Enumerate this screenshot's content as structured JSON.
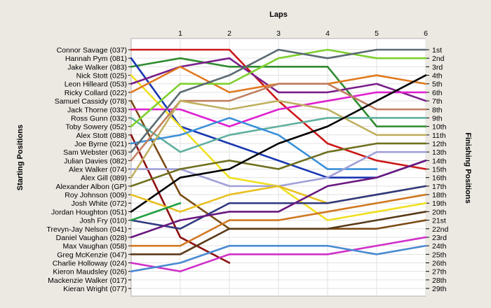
{
  "chart_data": {
    "type": "line",
    "title": "",
    "xlabel": "Laps",
    "ylabel_left": "Starting Positions",
    "ylabel_right": "Finishing Positions",
    "x_ticks": [
      1,
      2,
      3,
      4,
      5,
      6
    ],
    "x_range": [
      0,
      6
    ],
    "y_range": [
      1,
      29
    ],
    "y_reversed": true,
    "grid": true,
    "starting_labels": [
      "Connor Savage (037)",
      "Hannah Pym (081)",
      "Jake Walker (083)",
      "Nick Stott (025)",
      "Leon Hilleard (053)",
      "Ricky Collard (022)",
      "Samuel Cassidy (078)",
      "Jack Thorne (033)",
      "Ross Gunn (032)",
      "Toby Sowery (052)",
      "Alex Stott (088)",
      "Joe Byrne (021)",
      "Sam Webster (063)",
      "Julian Davies (082)",
      "Alex Walker (074)",
      "Alex Gill (089)",
      "Alexander Albon (GP)",
      "Roy Johnson (009)",
      "Josh White (072)",
      "Jordan Houghton (051)",
      "Josh Fry (010)",
      "Trevyn-Jay Nelson (041)",
      "Daniel Vaughan (028)",
      "Max Vaughan (058)",
      "Greg McKenzie (047)",
      "Charlie Holloway (024)",
      "Kieron Maudsley (026)",
      "Mackenzie Walker (017)",
      "Kieran Wright (077)"
    ],
    "finishing_labels": [
      "1st",
      "2nd",
      "3rd",
      "4th",
      "5th",
      "6th",
      "7th",
      "8th",
      "9th",
      "10th",
      "11th",
      "12th",
      "13th",
      "14th",
      "15th",
      "16th",
      "17th",
      "18th",
      "19th",
      "20th",
      "21st",
      "22nd",
      "23rd",
      "24th",
      "25th",
      "26th",
      "27th",
      "28th",
      "29th"
    ],
    "series": [
      {
        "color": "#cc1818",
        "values": [
          1,
          1,
          1,
          7,
          12,
          14,
          15
        ]
      },
      {
        "color": "#2e8b2e",
        "values": [
          3,
          2,
          3,
          3,
          3,
          10,
          10
        ]
      },
      {
        "color": "#1838b0",
        "values": [
          2,
          10,
          12,
          14,
          16,
          16,
          14
        ]
      },
      {
        "color": "#f0e020",
        "values": [
          4,
          10,
          16,
          17,
          21,
          20,
          19
        ]
      },
      {
        "color": "#7a1f8a",
        "values": [
          5,
          3,
          2,
          6,
          6,
          5,
          7
        ]
      },
      {
        "color": "#e07a20",
        "values": [
          6,
          3,
          6,
          5,
          5,
          4,
          5
        ]
      },
      {
        "color": "#7a4a12",
        "values": [
          7,
          18,
          22,
          22,
          22,
          22,
          21
        ]
      },
      {
        "color": "#e020d0",
        "values": [
          8,
          8,
          10,
          8,
          7,
          6,
          6
        ]
      },
      {
        "color": "#60b0a0",
        "values": [
          9,
          13,
          11,
          10,
          9,
          9,
          9
        ]
      },
      {
        "color": "#7ed030",
        "values": [
          10,
          5,
          5,
          2,
          1,
          2,
          2
        ]
      },
      {
        "color": "#8b1010",
        "values": [
          11,
          23,
          26
        ]
      },
      {
        "color": "#3a90d8",
        "values": [
          12,
          11,
          9,
          11,
          15,
          15
        ]
      },
      {
        "color": "#5a6a72",
        "values": [
          13,
          6,
          4,
          1,
          2,
          1,
          1
        ]
      },
      {
        "color": "#c08060",
        "values": [
          14,
          7,
          7,
          5,
          5,
          8,
          8
        ]
      },
      {
        "color": "#a0a0d8",
        "values": [
          15,
          15,
          17,
          17,
          16,
          13,
          13
        ]
      },
      {
        "color": "#c0b060",
        "values": [
          16,
          7,
          8,
          7,
          8,
          11,
          11
        ]
      },
      {
        "color": "#707020",
        "values": [
          17,
          15,
          14,
          15,
          13,
          12,
          12
        ]
      },
      {
        "color": "#000000",
        "values": [
          20,
          16,
          15,
          12,
          10,
          7,
          4
        ]
      },
      {
        "color": "#e8c020",
        "values": [
          18,
          20,
          18,
          17,
          19,
          18,
          17
        ]
      },
      {
        "color": "#303880",
        "values": [
          21,
          22,
          19,
          19,
          19,
          18,
          17
        ]
      },
      {
        "color": "#20a040",
        "values": [
          21,
          19
        ]
      },
      {
        "color": "#6a1880",
        "values": [
          23,
          21,
          20,
          20,
          17,
          16,
          14
        ]
      },
      {
        "color": "#d07820",
        "values": [
          24,
          24,
          21,
          21,
          20,
          19,
          18
        ]
      },
      {
        "color": "#5a3a18",
        "values": [
          25,
          25,
          22,
          22,
          22,
          21,
          20
        ]
      },
      {
        "color": "#d030c8",
        "values": [
          26,
          27,
          25,
          25,
          25,
          24,
          23
        ]
      },
      {
        "color": "#4a8ad0",
        "values": [
          27,
          26,
          24,
          24,
          24,
          25,
          24
        ]
      }
    ]
  }
}
